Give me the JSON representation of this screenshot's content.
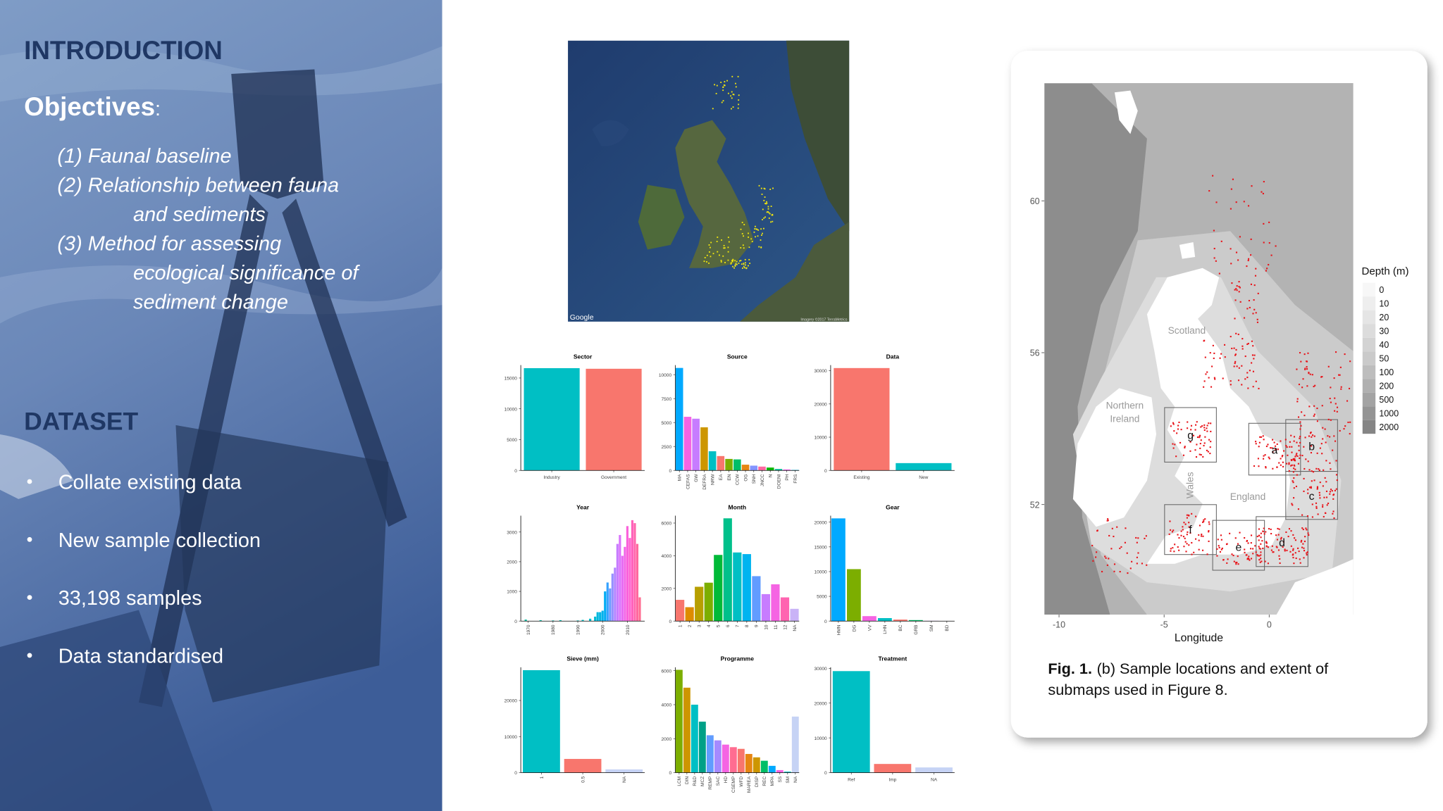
{
  "intro": {
    "heading": "INTRODUCTION",
    "objectives_label": "Objectives",
    "objectives_colon": ":",
    "objectives": [
      [
        "(1) Faunal baseline"
      ],
      [
        "(2) Relationship between fauna",
        "and sediments"
      ],
      [
        "(3) Method for assessing",
        "ecological significance of",
        "sediment change"
      ]
    ]
  },
  "dataset": {
    "heading": "DATASET",
    "bullets": [
      "Collate existing data",
      "New sample collection",
      "33,198 samples",
      "Data standardised"
    ]
  },
  "google_map": {
    "logo": "Google",
    "attribution": "Imagery ©2017 TerraMetrics"
  },
  "chart_data": [
    {
      "type": "bar",
      "title": "Sector",
      "categories": [
        "Industry",
        "Government"
      ],
      "values": [
        16600,
        16500
      ],
      "colors": [
        "#00bfc4",
        "#f8766d"
      ],
      "ylim": [
        0,
        17100
      ],
      "yticks": [
        0,
        5000,
        10000,
        15000
      ],
      "vertical_labels": false
    },
    {
      "type": "bar",
      "title": "Source",
      "categories": [
        "MA",
        "CEFAS",
        "GW",
        "DEFRA",
        "NRW",
        "EA",
        "EN",
        "CCW",
        "OG",
        "SNH",
        "JNCC",
        "N",
        "DOENI",
        "PH",
        "FRS"
      ],
      "values": [
        10700,
        5600,
        5400,
        4500,
        2000,
        1500,
        1200,
        1150,
        600,
        500,
        400,
        300,
        150,
        100,
        50
      ],
      "colors": [
        "#00a9ff",
        "#f564e3",
        "#c77cff",
        "#cd9600",
        "#00bfc4",
        "#f8766d",
        "#7cae00",
        "#00be67",
        "#e68613",
        "#8494ff",
        "#ff68a1",
        "#0cb702",
        "#00c19a",
        "#ed68ed",
        "#00b8e7"
      ],
      "ylim": [
        0,
        11000
      ],
      "yticks": [
        0,
        2500,
        5000,
        7500,
        10000
      ],
      "vertical_labels": true
    },
    {
      "type": "bar",
      "title": "Data",
      "categories": [
        "Existing",
        "New"
      ],
      "values": [
        30800,
        2200
      ],
      "colors": [
        "#f8766d",
        "#00bfc4"
      ],
      "ylim": [
        0,
        31700
      ],
      "yticks": [
        0,
        10000,
        20000,
        30000
      ],
      "vertical_labels": false
    },
    {
      "type": "bar",
      "title": "Year",
      "x": [
        1969,
        1975,
        1980,
        1983,
        1990,
        1992,
        1995,
        1997,
        1998,
        1999,
        2000,
        2001,
        2002,
        2003,
        2004,
        2005,
        2006,
        2007,
        2008,
        2009,
        2010,
        2011,
        2012,
        2013,
        2014,
        2015
      ],
      "values": [
        50,
        30,
        20,
        30,
        20,
        40,
        80,
        150,
        300,
        300,
        350,
        1000,
        1300,
        1100,
        1600,
        1800,
        2600,
        2900,
        2200,
        2500,
        3200,
        2800,
        3400,
        3300,
        2600,
        800
      ],
      "colors": [
        "#00c1a3",
        "#00c1a9",
        "#00c0b0",
        "#00c0b6",
        "#00bfbd",
        "#00bfc4",
        "#00bdcc",
        "#00bbd4",
        "#00b8dc",
        "#00b5e4",
        "#00b1ec",
        "#00acf3",
        "#35a2ff",
        "#6d9bff",
        "#9590ff",
        "#b385ff",
        "#c77cff",
        "#d973fc",
        "#e76bf3",
        "#f265e7",
        "#fa62db",
        "#fe61cf",
        "#ff62bc",
        "#ff65ac",
        "#ff689f",
        "#ff6c91"
      ],
      "xlim": [
        1967,
        2017
      ],
      "xticks": [
        1970,
        1980,
        1990,
        2000,
        2010
      ],
      "ylim": [
        0,
        3550
      ],
      "yticks": [
        0,
        1000,
        2000,
        3000
      ],
      "vertical_labels": true
    },
    {
      "type": "bar",
      "title": "Month",
      "categories": [
        "1",
        "2",
        "3",
        "4",
        "5",
        "6",
        "7",
        "8",
        "9",
        "10",
        "11",
        "12",
        "NA"
      ],
      "values": [
        1300,
        850,
        2100,
        2350,
        4050,
        6290,
        4200,
        4100,
        2750,
        1650,
        2250,
        1450,
        750
      ],
      "colors": [
        "#f8766d",
        "#de8c00",
        "#b79f00",
        "#7cae00",
        "#00ba38",
        "#00c08b",
        "#00bfc4",
        "#00b4f0",
        "#619cff",
        "#c77cff",
        "#f564e3",
        "#ff64b0",
        "#c9b3f7"
      ],
      "ylim": [
        0,
        6450
      ],
      "yticks": [
        0,
        2000,
        4000,
        6000
      ],
      "vertical_labels": true
    },
    {
      "type": "bar",
      "title": "Gear",
      "categories": [
        "HMN",
        "DG",
        "VV",
        "LHN",
        "BC",
        "GRB",
        "SM",
        "BD"
      ],
      "values": [
        20760,
        10500,
        1000,
        600,
        300,
        200,
        50,
        20
      ],
      "colors": [
        "#00a9ff",
        "#7cae00",
        "#f564e3",
        "#00bfc4",
        "#f8766d",
        "#00be67",
        "#c77cff",
        "#cd9600"
      ],
      "ylim": [
        0,
        21300
      ],
      "yticks": [
        0,
        5000,
        10000,
        15000,
        20000
      ],
      "vertical_labels": true
    },
    {
      "type": "bar",
      "title": "Sieve (mm)",
      "categories": [
        "1",
        "0.5",
        "NA"
      ],
      "values": [
        28400,
        3800,
        900
      ],
      "colors": [
        "#00bfc4",
        "#f8766d",
        "#c6d3f5"
      ],
      "ylim": [
        0,
        29200
      ],
      "yticks": [
        0,
        10000,
        20000
      ],
      "vertical_labels": true
    },
    {
      "type": "bar",
      "title": "Programme",
      "categories": [
        "LCM",
        "DIN",
        "R&D",
        "MCZ",
        "REMP",
        "SAC",
        "HD",
        "CSEMP",
        "WFD",
        "MAREA",
        "DISP",
        "REC",
        "MPA",
        "SS",
        "SM",
        "NA"
      ],
      "values": [
        6050,
        5000,
        4000,
        3000,
        2200,
        1900,
        1650,
        1500,
        1400,
        1100,
        900,
        700,
        400,
        150,
        60,
        3300
      ],
      "colors": [
        "#7cae00",
        "#cd9600",
        "#00bfc4",
        "#00a087",
        "#619cff",
        "#a58aff",
        "#f564e3",
        "#ff6c91",
        "#f8766d",
        "#e68613",
        "#cd9600",
        "#00be67",
        "#00a9ff",
        "#f564e3",
        "#00bfc4",
        "#c6d3f5"
      ],
      "ylim": [
        0,
        6200
      ],
      "yticks": [
        0,
        2000,
        4000,
        6000
      ],
      "vertical_labels": true
    },
    {
      "type": "bar",
      "title": "Treatment",
      "categories": [
        "Ref",
        "Imp",
        "NA"
      ],
      "values": [
        29200,
        2500,
        1500
      ],
      "colors": [
        "#00bfc4",
        "#f8766d",
        "#c6d3f5"
      ],
      "ylim": [
        0,
        30300
      ],
      "yticks": [
        0,
        10000,
        20000,
        30000
      ],
      "vertical_labels": false
    }
  ],
  "figure": {
    "xlim": [
      -10.7,
      4.0
    ],
    "xticks": [
      -10,
      -5,
      0
    ],
    "ylim": [
      49.1,
      63.1
    ],
    "yticks": [
      52,
      56,
      60
    ],
    "x_label": "Longitude",
    "legend": {
      "title": "Depth (m)",
      "values": [
        0,
        10,
        20,
        30,
        40,
        50,
        100,
        200,
        500,
        1000,
        2000
      ],
      "colors": [
        "#f7f7f7",
        "#eeeeee",
        "#e5e5e5",
        "#dcdcdc",
        "#d3d3d3",
        "#cacaca",
        "#bdbdbd",
        "#b0b0b0",
        "#a3a3a3",
        "#949494",
        "#858585"
      ]
    },
    "places": [
      {
        "lines": [
          "Scotland"
        ]
      },
      {
        "lines": [
          "Northern",
          "Ireland"
        ]
      },
      {
        "lines": [
          "Wales"
        ]
      },
      {
        "lines": [
          "England"
        ]
      }
    ],
    "submaps": [
      "a",
      "b",
      "c",
      "d",
      "e",
      "f",
      "g"
    ],
    "caption": {
      "label": "Fig. 1.",
      "lines": [
        "(b) Sample locations and extent of",
        "submaps used in Figure 8."
      ]
    }
  }
}
